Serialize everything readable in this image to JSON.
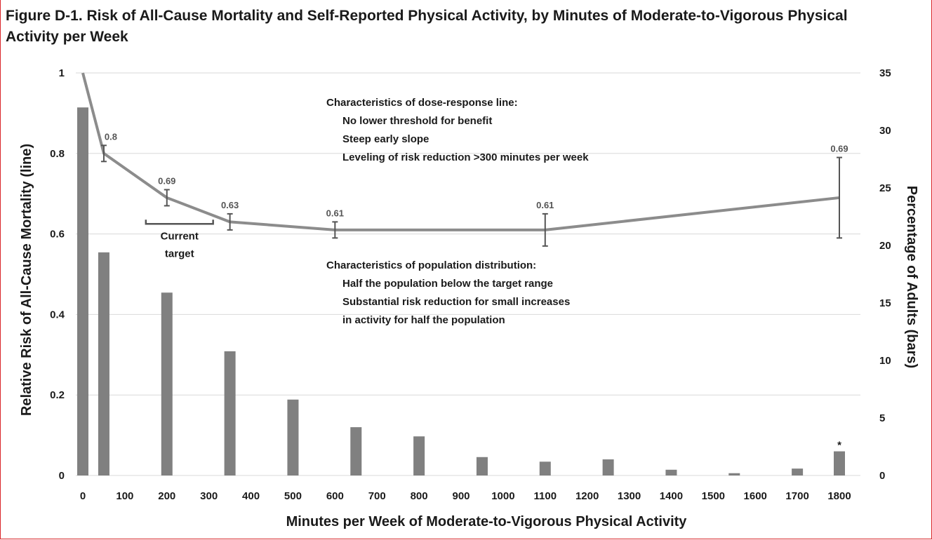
{
  "title": "Figure D-1. Risk of All-Cause Mortality and Self-Reported Physical Activity, by Minutes of Moderate-to-Vigorous Physical Activity per Week",
  "chart_data": {
    "type": "bar+line",
    "title": "Figure D-1. Risk of All-Cause Mortality and Self-Reported Physical Activity, by Minutes of Moderate-to-Vigorous Physical Activity per Week",
    "xlabel": "Minutes per Week of Moderate-to-Vigorous Physical Activity",
    "ylabel_left": "Relative Risk of All-Cause Mortality (line)",
    "ylabel_right": "Percentage of Adults (bars)",
    "xlim": [
      0,
      1800
    ],
    "ylim_left": [
      0,
      1
    ],
    "ylim_right": [
      0,
      35
    ],
    "x_ticks": [
      "0",
      "100",
      "200",
      "300",
      "400",
      "500",
      "600",
      "700",
      "800",
      "900",
      "1000",
      "1100",
      "1200",
      "1300",
      "1400",
      "1500",
      "1600",
      "1700",
      "1800"
    ],
    "y_left_ticks": [
      "0",
      "0.2",
      "0.4",
      "0.6",
      "0.8",
      "1"
    ],
    "y_right_ticks": [
      "0",
      "5",
      "10",
      "15",
      "20",
      "25",
      "30",
      "35"
    ],
    "grid": true,
    "bars": {
      "x": [
        0,
        50,
        200,
        350,
        500,
        650,
        800,
        950,
        1100,
        1250,
        1400,
        1550,
        1700,
        1800
      ],
      "values": [
        32,
        19.4,
        15.9,
        10.8,
        6.6,
        4.2,
        3.4,
        1.6,
        1.2,
        1.4,
        0.5,
        0.2,
        0.6,
        2.1
      ]
    },
    "line": {
      "x": [
        0,
        50,
        200,
        350,
        600,
        1100,
        1800
      ],
      "values": [
        1.0,
        0.8,
        0.69,
        0.63,
        0.61,
        0.61,
        0.69
      ],
      "error_low": [
        null,
        0.78,
        0.67,
        0.61,
        0.59,
        0.57,
        0.59
      ],
      "error_high": [
        null,
        0.82,
        0.71,
        0.65,
        0.63,
        0.65,
        0.79
      ],
      "labels": [
        "",
        "0.8",
        "0.69",
        "0.63",
        "0.61",
        "0.61",
        "0.69"
      ]
    },
    "bar_annotation": {
      "x": 1800,
      "text": "*"
    },
    "bracket": {
      "x_range": [
        150,
        310
      ],
      "text_lines": [
        "Current",
        "target"
      ]
    },
    "notes": [
      [
        "Characteristics of dose-response line:",
        "No lower threshold for benefit",
        "Steep early slope",
        "Leveling of risk reduction >300 minutes per week"
      ],
      [
        "Characteristics of population distribution:",
        "Half the population below the target range",
        "Substantial risk reduction for small increases",
        "in activity for half the population"
      ]
    ],
    "colors": {
      "bars": "#808080",
      "line": "#8c8c8c",
      "error_bars": "#555555",
      "grid": "#d9d9d9"
    }
  }
}
